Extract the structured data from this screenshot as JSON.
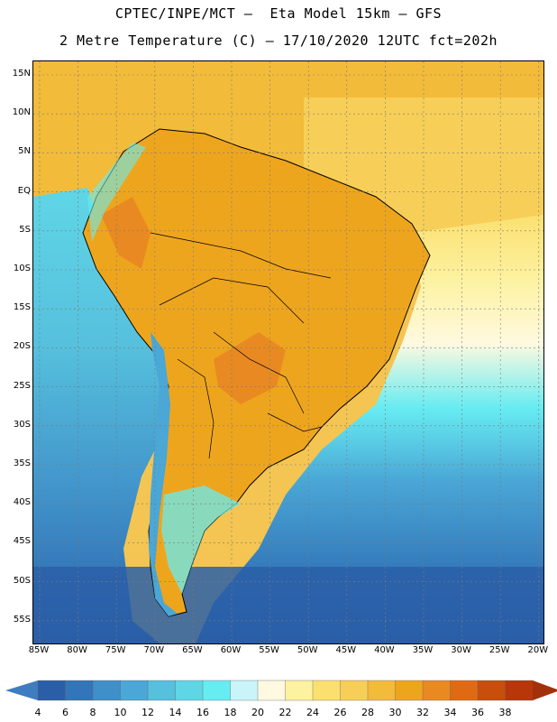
{
  "title_line1": "CPTEC/INPE/MCT –  Eta Model 15km – GFS",
  "title_line2": "2 Metre Temperature (C) – 17/10/2020 12UTC fct=202h",
  "map": {
    "lat_labels": [
      "15N",
      "10N",
      "5N",
      "EQ",
      "5S",
      "10S",
      "15S",
      "20S",
      "25S",
      "30S",
      "35S",
      "40S",
      "45S",
      "50S",
      "55S"
    ],
    "lon_labels": [
      "85W",
      "80W",
      "75W",
      "70W",
      "65W",
      "60W",
      "55W",
      "50W",
      "45W",
      "40W",
      "35W",
      "30W",
      "25W",
      "20W"
    ]
  },
  "colorbar": {
    "labels": [
      "4",
      "6",
      "8",
      "10",
      "12",
      "14",
      "16",
      "18",
      "20",
      "22",
      "24",
      "26",
      "28",
      "30",
      "32",
      "34",
      "36",
      "38"
    ],
    "colors": [
      "#2a5fa8",
      "#3275b8",
      "#3f8fc8",
      "#4aa7d6",
      "#56c0dd",
      "#5fd6e6",
      "#67ecf2",
      "#c8f4fa",
      "#fef9e0",
      "#fdf2a0",
      "#fbe070",
      "#f7cf58",
      "#f2bb3a",
      "#eea51e",
      "#e88a21",
      "#e06a14",
      "#c84e0b",
      "#b7370b"
    ]
  }
}
